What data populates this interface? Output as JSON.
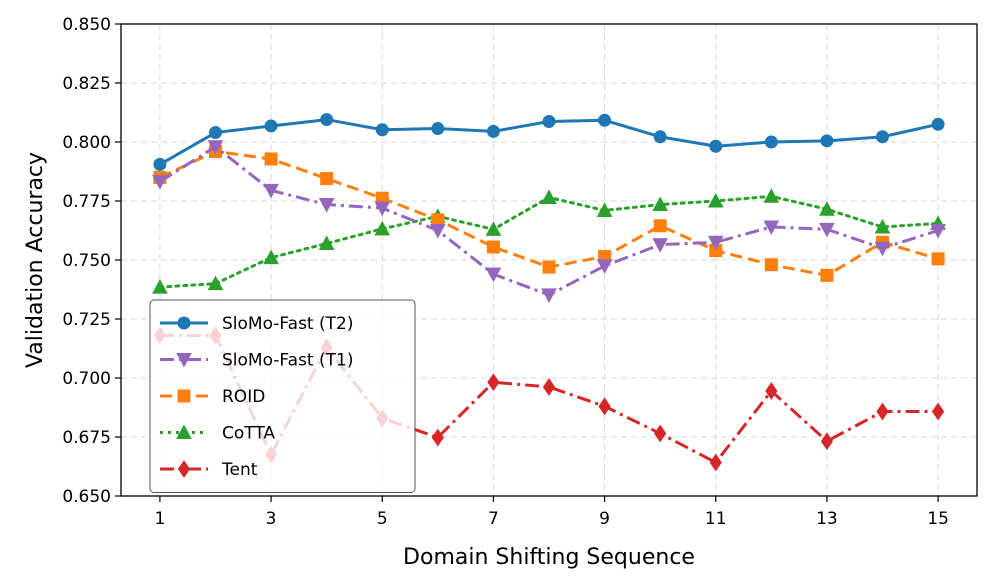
{
  "chart_data": {
    "type": "line",
    "title": "",
    "xlabel": "Domain Shifting Sequence",
    "ylabel": "Validation Accuracy",
    "x": [
      1,
      2,
      3,
      4,
      5,
      6,
      7,
      8,
      9,
      10,
      11,
      12,
      13,
      14,
      15
    ],
    "xticks": [
      1,
      3,
      5,
      7,
      9,
      11,
      13,
      15
    ],
    "xlim": [
      0.3,
      15.7
    ],
    "ylim": [
      0.65,
      0.85
    ],
    "yticks": [
      0.65,
      0.675,
      0.7,
      0.725,
      0.75,
      0.775,
      0.8,
      0.825,
      0.85
    ],
    "ytick_labels": [
      "0.650",
      "0.675",
      "0.700",
      "0.725",
      "0.750",
      "0.775",
      "0.800",
      "0.825",
      "0.850"
    ],
    "grid": true,
    "legend_position": "lower-left",
    "series": [
      {
        "name": "SloMo-Fast (T2)",
        "color": "#1f77b4",
        "dash": "solid",
        "marker": "circle",
        "values": [
          0.7905,
          0.804,
          0.8068,
          0.8095,
          0.8052,
          0.8057,
          0.8045,
          0.8087,
          0.8092,
          0.8022,
          0.7982,
          0.8,
          0.8005,
          0.8022,
          0.8075
        ]
      },
      {
        "name": "SloMo-Fast (T1)",
        "color": "#9467bd",
        "dash": "dashdot",
        "marker": "triangle-down",
        "values": [
          0.7832,
          0.798,
          0.7795,
          0.7735,
          0.772,
          0.7625,
          0.744,
          0.7352,
          0.7475,
          0.7565,
          0.7575,
          0.764,
          0.763,
          0.755,
          0.7625
        ]
      },
      {
        "name": "ROID",
        "color": "#ff7f0e",
        "dash": "dashed",
        "marker": "square",
        "values": [
          0.785,
          0.796,
          0.7928,
          0.7845,
          0.7762,
          0.767,
          0.7555,
          0.747,
          0.7515,
          0.7645,
          0.754,
          0.748,
          0.7435,
          0.7575,
          0.7505
        ]
      },
      {
        "name": "CoTTA",
        "color": "#2ca02c",
        "dash": "dotted",
        "marker": "triangle-up",
        "values": [
          0.7385,
          0.74,
          0.751,
          0.757,
          0.7632,
          0.7685,
          0.763,
          0.7765,
          0.771,
          0.7735,
          0.775,
          0.777,
          0.7715,
          0.764,
          0.7655
        ]
      },
      {
        "name": "Tent",
        "color": "#d62728",
        "dash": "dashdot",
        "marker": "diamond",
        "values": [
          0.718,
          0.718,
          0.6675,
          0.713,
          0.683,
          0.6748,
          0.6982,
          0.6962,
          0.688,
          0.6765,
          0.6642,
          0.6945,
          0.6732,
          0.6858,
          0.6858
        ]
      }
    ]
  }
}
